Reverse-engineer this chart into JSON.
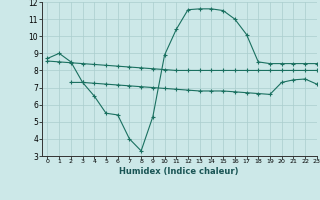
{
  "xlabel": "Humidex (Indice chaleur)",
  "bg_color": "#cce8e8",
  "grid_color": "#aacece",
  "line_color": "#1a7060",
  "line1_x": [
    0,
    1,
    2,
    3,
    4,
    5,
    6,
    7,
    8,
    9,
    10,
    11,
    12,
    13,
    14,
    15,
    16,
    17,
    18,
    19,
    20,
    21,
    22,
    23
  ],
  "line1_y": [
    8.7,
    9.0,
    8.5,
    7.3,
    6.5,
    5.5,
    5.4,
    4.0,
    3.3,
    5.3,
    8.9,
    10.4,
    11.55,
    11.6,
    11.6,
    11.5,
    11.0,
    10.1,
    8.5,
    8.4,
    8.4,
    8.4,
    8.4,
    8.4
  ],
  "line2_x": [
    0,
    1,
    2,
    3,
    4,
    5,
    6,
    7,
    8,
    9,
    10,
    11,
    12,
    13,
    14,
    15,
    16,
    17,
    18,
    19,
    20,
    21,
    22,
    23
  ],
  "line2_y": [
    8.55,
    8.5,
    8.45,
    8.4,
    8.35,
    8.3,
    8.25,
    8.2,
    8.15,
    8.1,
    8.05,
    8.0,
    8.0,
    8.0,
    8.0,
    8.0,
    8.0,
    8.0,
    8.0,
    8.0,
    8.0,
    8.0,
    8.0,
    8.0
  ],
  "line3_x": [
    2,
    3,
    4,
    5,
    6,
    7,
    8,
    9,
    10,
    11,
    12,
    13,
    14,
    15,
    16,
    17,
    18,
    19,
    20,
    21,
    22,
    23
  ],
  "line3_y": [
    7.3,
    7.3,
    7.25,
    7.2,
    7.15,
    7.1,
    7.05,
    7.0,
    6.95,
    6.9,
    6.85,
    6.8,
    6.8,
    6.8,
    6.75,
    6.7,
    6.65,
    6.6,
    7.3,
    7.45,
    7.5,
    7.2
  ],
  "ylim": [
    3,
    12
  ],
  "xlim": [
    -0.5,
    23
  ],
  "yticks": [
    3,
    4,
    5,
    6,
    7,
    8,
    9,
    10,
    11,
    12
  ],
  "xticks": [
    0,
    1,
    2,
    3,
    4,
    5,
    6,
    7,
    8,
    9,
    10,
    11,
    12,
    13,
    14,
    15,
    16,
    17,
    18,
    19,
    20,
    21,
    22,
    23
  ]
}
